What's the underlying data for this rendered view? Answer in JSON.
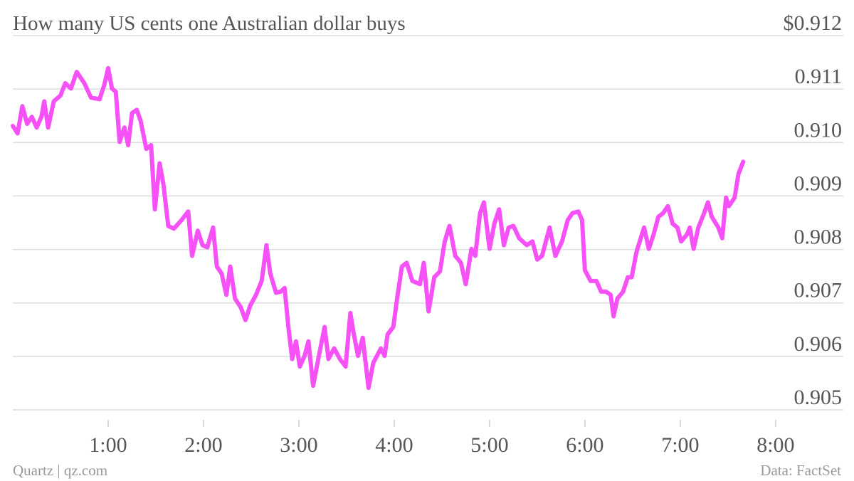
{
  "chart_data": {
    "type": "line",
    "title": "How many US cents one Australian dollar buys",
    "source": "Data: FactSet",
    "credit": "Quartz | qz.com",
    "color": "#f651f6",
    "x": [
      0,
      0.05,
      0.1,
      0.15,
      0.2,
      0.25,
      0.3,
      0.33,
      0.37,
      0.43,
      0.5,
      0.55,
      0.61,
      0.67,
      0.75,
      0.82,
      0.91,
      0.96,
      1.0,
      1.04,
      1.08,
      1.12,
      1.17,
      1.21,
      1.25,
      1.3,
      1.34,
      1.4,
      1.45,
      1.49,
      1.54,
      1.58,
      1.63,
      1.69,
      1.77,
      1.84,
      1.88,
      1.94,
      1.99,
      2.04,
      2.1,
      2.14,
      2.19,
      2.24,
      2.28,
      2.33,
      2.39,
      2.44,
      2.49,
      2.55,
      2.61,
      2.66,
      2.7,
      2.76,
      2.81,
      2.85,
      2.89,
      2.93,
      2.97,
      3.01,
      3.06,
      3.1,
      3.15,
      3.21,
      3.27,
      3.31,
      3.37,
      3.43,
      3.49,
      3.54,
      3.57,
      3.62,
      3.67,
      3.73,
      3.78,
      3.86,
      3.9,
      3.93,
      3.99,
      4.03,
      4.08,
      4.13,
      4.19,
      4.27,
      4.31,
      4.36,
      4.42,
      4.48,
      4.53,
      4.58,
      4.64,
      4.7,
      4.75,
      4.81,
      4.85,
      4.9,
      4.94,
      5.0,
      5.05,
      5.1,
      5.15,
      5.2,
      5.25,
      5.31,
      5.39,
      5.45,
      5.5,
      5.55,
      5.63,
      5.69,
      5.76,
      5.82,
      5.87,
      5.93,
      5.97,
      6.0,
      6.06,
      6.12,
      6.17,
      6.22,
      6.27,
      6.3,
      6.34,
      6.4,
      6.45,
      6.49,
      6.54,
      6.62,
      6.67,
      6.72,
      6.77,
      6.82,
      6.87,
      6.92,
      6.97,
      7.01,
      7.07,
      7.1,
      7.14,
      7.19,
      7.25,
      7.29,
      7.33,
      7.4,
      7.44,
      7.48,
      7.51,
      7.57,
      7.61,
      7.66
    ],
    "values": [
      0.91031,
      0.91017,
      0.91068,
      0.91035,
      0.91048,
      0.91028,
      0.91048,
      0.91077,
      0.91028,
      0.91077,
      0.91088,
      0.91111,
      0.91101,
      0.91132,
      0.91111,
      0.91084,
      0.91081,
      0.91108,
      0.91139,
      0.91101,
      0.91095,
      0.91001,
      0.91028,
      0.90995,
      0.91055,
      0.91061,
      0.91041,
      0.90988,
      0.90995,
      0.90875,
      0.90961,
      0.90921,
      0.90844,
      0.90839,
      0.90855,
      0.90871,
      0.90788,
      0.90835,
      0.90808,
      0.90804,
      0.90841,
      0.90768,
      0.90755,
      0.90715,
      0.90768,
      0.90708,
      0.90692,
      0.90668,
      0.90695,
      0.90715,
      0.90741,
      0.90808,
      0.90755,
      0.90719,
      0.90721,
      0.90728,
      0.90655,
      0.90595,
      0.90628,
      0.90581,
      0.90601,
      0.90628,
      0.90545,
      0.90601,
      0.90655,
      0.90595,
      0.90615,
      0.90595,
      0.90581,
      0.90681,
      0.90648,
      0.90601,
      0.90635,
      0.90541,
      0.90588,
      0.90615,
      0.90601,
      0.90641,
      0.90655,
      0.90708,
      0.90768,
      0.90775,
      0.90741,
      0.90735,
      0.90775,
      0.90684,
      0.90748,
      0.90759,
      0.90815,
      0.90844,
      0.90788,
      0.90775,
      0.90735,
      0.90801,
      0.90788,
      0.90868,
      0.90888,
      0.90801,
      0.90848,
      0.90875,
      0.90808,
      0.90841,
      0.90844,
      0.90821,
      0.90808,
      0.90815,
      0.90781,
      0.90788,
      0.90841,
      0.90788,
      0.90815,
      0.90855,
      0.90868,
      0.90871,
      0.90855,
      0.90761,
      0.90741,
      0.90741,
      0.90721,
      0.90721,
      0.90715,
      0.90675,
      0.90708,
      0.90721,
      0.90748,
      0.90748,
      0.90795,
      0.90841,
      0.90801,
      0.90828,
      0.90861,
      0.90868,
      0.90881,
      0.90848,
      0.90841,
      0.90815,
      0.90828,
      0.90841,
      0.90801,
      0.90841,
      0.90868,
      0.90888,
      0.90861,
      0.90841,
      0.90821,
      0.90897,
      0.90881,
      0.90897,
      0.90941,
      0.90964
    ],
    "xlim": [
      0,
      8.71
    ],
    "xticks": [
      {
        "value": 1,
        "label": "1:00"
      },
      {
        "value": 2,
        "label": "2:00"
      },
      {
        "value": 3,
        "label": "3:00"
      },
      {
        "value": 4,
        "label": "4:00"
      },
      {
        "value": 5,
        "label": "5:00"
      },
      {
        "value": 6,
        "label": "6:00"
      },
      {
        "value": 7,
        "label": "7:00"
      },
      {
        "value": 8,
        "label": "8:00"
      }
    ],
    "ylim": [
      0.905,
      0.912
    ],
    "yticks": [
      0.905,
      0.906,
      0.907,
      0.908,
      0.909,
      {
        "value": 0.91,
        "label": "0.910"
      },
      0.911,
      {
        "value": 0.912,
        "label": "$0.912"
      }
    ],
    "grid": true
  }
}
